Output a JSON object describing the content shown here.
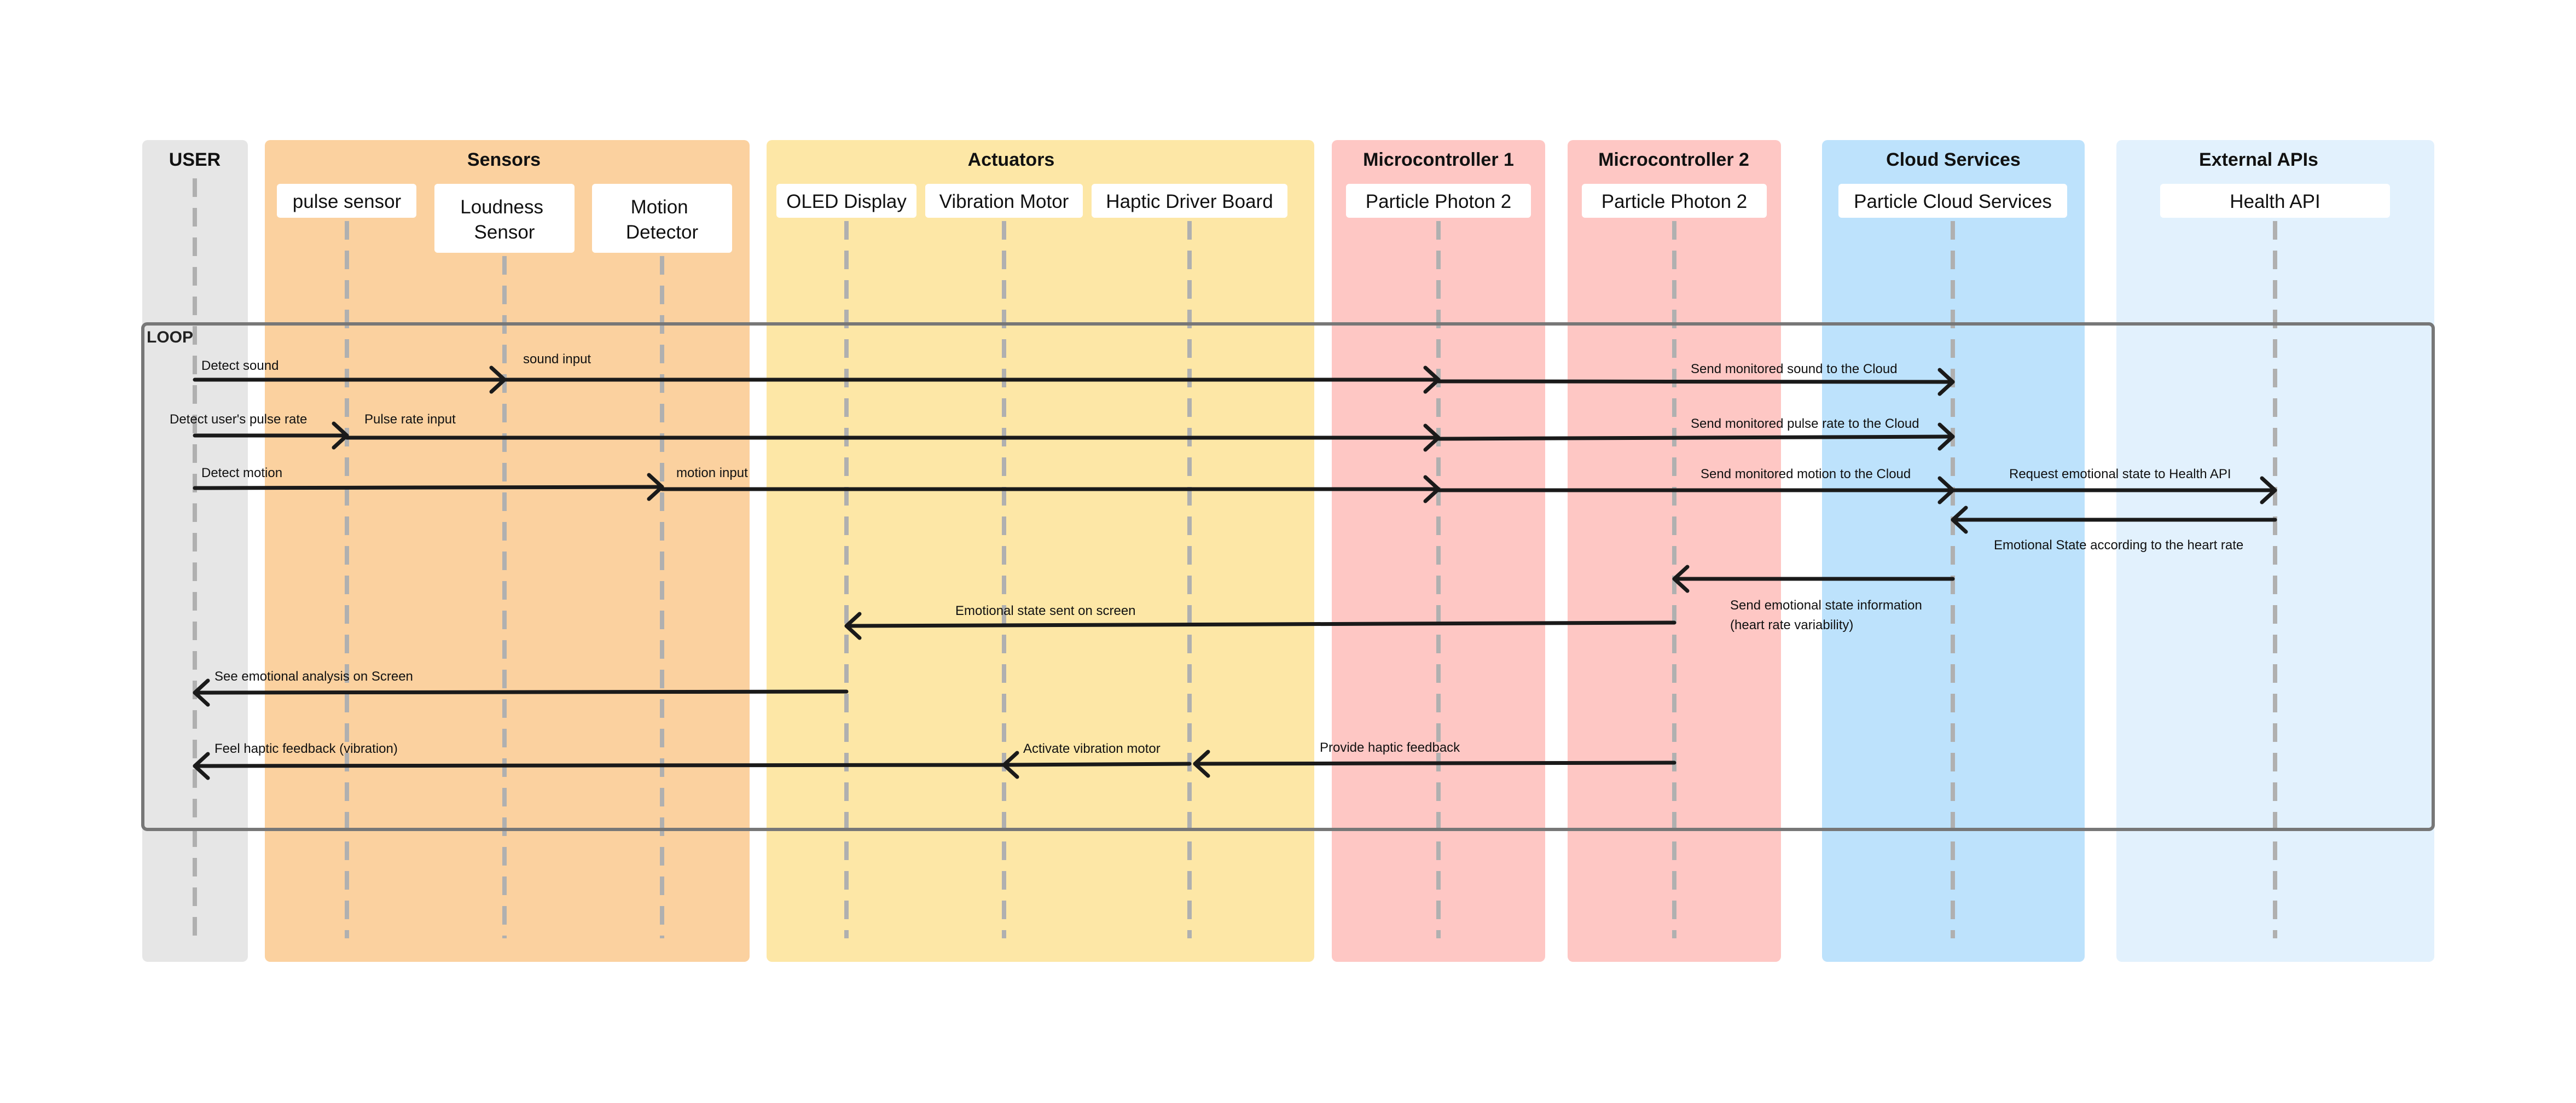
{
  "colors": {
    "user": "#e6e6e6",
    "sensors": "#fbd19f",
    "actuators": "#fde7a6",
    "microcontroller_1": "#fec7c4",
    "microcontroller_2": "#fec7c4",
    "cloud": "#bde2fc",
    "external": "#e2f1fd",
    "lifeline": "#b0b0b0",
    "arrow": "#1a1a1a",
    "loop_border": "#777777",
    "box": "#ffffff"
  },
  "groups": [
    {
      "id": "user",
      "title": "USER"
    },
    {
      "id": "sensors",
      "title": "Sensors"
    },
    {
      "id": "actuators",
      "title": "Actuators"
    },
    {
      "id": "microcontroller_1",
      "title": "Microcontroller 1"
    },
    {
      "id": "microcontroller_2",
      "title": "Microcontroller 2"
    },
    {
      "id": "cloud",
      "title": "Cloud Services"
    },
    {
      "id": "external",
      "title": "External APIs"
    }
  ],
  "actors": [
    {
      "id": "pulse",
      "label": "pulse sensor"
    },
    {
      "id": "loudness",
      "label": "Loudness Sensor"
    },
    {
      "id": "motion",
      "label": "Motion Detector"
    },
    {
      "id": "oled",
      "label": "OLED Display"
    },
    {
      "id": "vibration",
      "label": "Vibration Motor"
    },
    {
      "id": "haptic",
      "label": "Haptic Driver Board"
    },
    {
      "id": "mc1",
      "label": "Particle Photon 2"
    },
    {
      "id": "mc2",
      "label": "Particle Photon 2"
    },
    {
      "id": "cloud",
      "label": "Particle Cloud Services"
    },
    {
      "id": "health",
      "label": "Health API"
    }
  ],
  "loop": {
    "label": "LOOP"
  },
  "messages": [
    {
      "from": "user",
      "to": "loudness",
      "label": "Detect sound"
    },
    {
      "from": "loudness",
      "to": "mc1",
      "label": "sound input"
    },
    {
      "from": "mc1",
      "to": "cloud",
      "label": "Send monitored sound to the Cloud"
    },
    {
      "from": "user",
      "to": "pulse",
      "label": "Detect user's pulse rate"
    },
    {
      "from": "pulse",
      "to": "mc1",
      "label": "Pulse rate input"
    },
    {
      "from": "mc1",
      "to": "cloud",
      "label": "Send monitored pulse rate to the Cloud"
    },
    {
      "from": "user",
      "to": "motion",
      "label": "Detect motion"
    },
    {
      "from": "motion",
      "to": "mc1",
      "label": "motion input"
    },
    {
      "from": "mc1",
      "to": "cloud",
      "label": "Send monitored motion to the Cloud"
    },
    {
      "from": "cloud",
      "to": "health",
      "label": "Request emotional state to Health API"
    },
    {
      "from": "health",
      "to": "cloud",
      "label": "Emotional State according to the heart rate"
    },
    {
      "from": "cloud",
      "to": "mc2",
      "label": "Send emotional state information (heart rate variability)"
    },
    {
      "from": "mc2",
      "to": "oled",
      "label": "Emotional state sent on screen"
    },
    {
      "from": "oled",
      "to": "user",
      "label": "See emotional analysis on Screen"
    },
    {
      "from": "mc2",
      "to": "haptic",
      "label": "Provide haptic feedback"
    },
    {
      "from": "haptic",
      "to": "vibration",
      "label": "Activate vibration motor"
    },
    {
      "from": "vibration",
      "to": "user",
      "label": "Feel haptic feedback (vibration)"
    }
  ]
}
